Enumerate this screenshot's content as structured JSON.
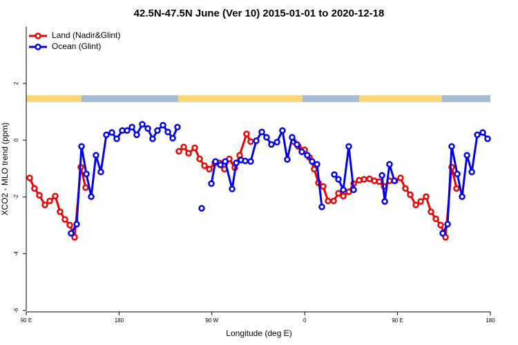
{
  "chart_data": {
    "type": "line",
    "title": "42.5N-47.5N June (Ver 10)   2015-01-01 to 2020-12-18",
    "x_label": "Longitude (deg E)",
    "y_label": "XCO2 - MLO trend (ppm)",
    "xlim": [
      90,
      540
    ],
    "ylim": [
      -6,
      4
    ],
    "xticks": [
      {
        "value": 90,
        "label": "90 E"
      },
      180,
      {
        "value": 270,
        "label": "90 W"
      },
      {
        "value": 360,
        "label": "0"
      },
      {
        "value": 450,
        "label": "90 E"
      },
      {
        "value": 540,
        "label": "180"
      }
    ],
    "yticks": [
      -6,
      -4,
      -2,
      0,
      2
    ],
    "legend": "top-left",
    "series": [
      {
        "name": "Land (Nadir&Glint)",
        "color": "#ee0000",
        "x": [
          93.3,
          98.0,
          102.7,
          108.1,
          112.8,
          118.1,
          122.8,
          127.5,
          132.2,
          136.9,
          142.9,
          147.6,
          null,
          238.0,
          242.7,
          247.4,
          253.4,
          258.1,
          262.8,
          267.5,
          272.8,
          277.5,
          282.2,
          286.9,
          292.2,
          296.9,
          303.6,
          307.6,
          null,
          349.2,
          353.8,
          359.9,
          364.6,
          369.2,
          373.3,
          377.9,
          382.6,
          388.0,
          392.7,
          397.4,
          402.7,
          407.4,
          412.8,
          417.5,
          422.8,
          427.5,
          432.2,
          436.9,
          442.2,
          447.6,
          452.9,
          457.6,
          462.3,
          467.7,
          472.4,
          477.7,
          482.4,
          487.1,
          491.8,
          496.5,
          502.5,
          507.2
        ],
        "values": [
          -1.33,
          -1.7,
          -1.94,
          -2.28,
          -2.14,
          -1.97,
          -2.52,
          -2.79,
          -2.99,
          -3.42,
          -0.95,
          -1.67,
          null,
          -0.39,
          -0.24,
          -0.46,
          -0.27,
          -0.66,
          -0.9,
          -1.02,
          -0.8,
          -0.8,
          -1.02,
          -0.66,
          -0.97,
          -0.53,
          0.22,
          -0.05,
          null,
          -0.05,
          -0.22,
          -0.34,
          -0.61,
          -1.02,
          -1.5,
          -1.63,
          -2.14,
          -2.14,
          -1.87,
          -1.97,
          -1.82,
          -1.53,
          -1.41,
          -1.38,
          -1.36,
          -1.43,
          -1.46,
          -1.63,
          -1.43,
          -1.43,
          -1.33,
          -1.7,
          -1.92,
          -2.28,
          -2.16,
          -1.99,
          -2.52,
          -2.77,
          -2.99,
          -3.42,
          -0.95,
          -1.7
        ]
      },
      {
        "name": "Ocean (Glint)",
        "color": "#0000ee",
        "x": [
          133.5,
          138.9,
          143.6,
          148.3,
          153.0,
          157.6,
          162.3,
          167.7,
          173.0,
          177.7,
          183.1,
          187.8,
          192.5,
          197.1,
          202.5,
          207.9,
          212.5,
          217.2,
          222.6,
          227.3,
          232.0,
          236.6,
          null,
          260.1,
          null,
          269.5,
          273.5,
          278.2,
          282.9,
          289.6,
          293.6,
          298.3,
          302.3,
          307.6,
          313.0,
          318.4,
          323.0,
          327.7,
          333.1,
          338.4,
          343.1,
          347.8,
          352.5,
          357.2,
          362.5,
          367.2,
          371.9,
          376.6,
          null,
          388.7,
          392.7,
          397.4,
          402.7,
          407.4,
          null,
          434.9,
          437.6,
          442.2,
          446.9,
          null,
          493.8,
          498.5,
          502.5,
          507.9,
          512.6,
          517.3,
          522.0,
          527.3,
          532.6,
          537.3
        ],
        "values": [
          -3.28,
          -2.96,
          -0.22,
          -1.19,
          -1.99,
          -0.53,
          -1.12,
          0.19,
          0.27,
          0.05,
          0.34,
          0.34,
          0.46,
          0.19,
          0.56,
          0.41,
          0.05,
          0.34,
          0.53,
          0.29,
          0.07,
          0.46,
          null,
          -2.4,
          null,
          -1.53,
          -0.75,
          -0.87,
          -0.75,
          -1.72,
          -0.8,
          -0.7,
          -0.73,
          -0.75,
          -0.02,
          0.29,
          0.1,
          -0.15,
          -0.07,
          0.34,
          -0.68,
          0.1,
          -0.15,
          -0.41,
          -0.53,
          -0.75,
          -0.85,
          -2.35,
          null,
          -1.21,
          -1.38,
          -1.75,
          -0.22,
          -1.75,
          null,
          -1.24,
          -2.16,
          -0.85,
          -1.43,
          null,
          -3.28,
          -2.96,
          -0.22,
          -1.19,
          -1.99,
          -0.53,
          -1.12,
          0.19,
          0.27,
          0.05
        ]
      }
    ]
  }
}
